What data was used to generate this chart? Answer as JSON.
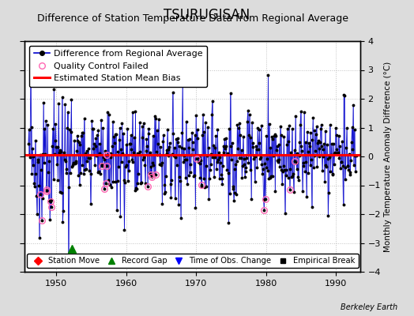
{
  "title": "TSURUGISAN",
  "subtitle": "Difference of Station Temperature Data from Regional Average",
  "ylabel_right": "Monthly Temperature Anomaly Difference (°C)",
  "xlim": [
    1945.5,
    1993.5
  ],
  "ylim": [
    -4,
    4
  ],
  "yticks": [
    -4,
    -3,
    -2,
    -1,
    0,
    1,
    2,
    3,
    4
  ],
  "xticks": [
    1950,
    1960,
    1970,
    1980,
    1990
  ],
  "bias_value": 0.05,
  "record_gap_x": 1952.25,
  "record_gap_y": -3.2,
  "background_color": "#dcdcdc",
  "plot_bg_color": "#ffffff",
  "line_color": "#0000cc",
  "bias_color": "#ff0000",
  "qc_color": "#ff69b4",
  "title_fontsize": 12,
  "subtitle_fontsize": 9,
  "tick_fontsize": 8,
  "legend_fontsize": 8,
  "watermark": "Berkeley Earth",
  "grid_color": "#c0c0c0",
  "start_year": 1946.0,
  "end_year": 1993.0
}
